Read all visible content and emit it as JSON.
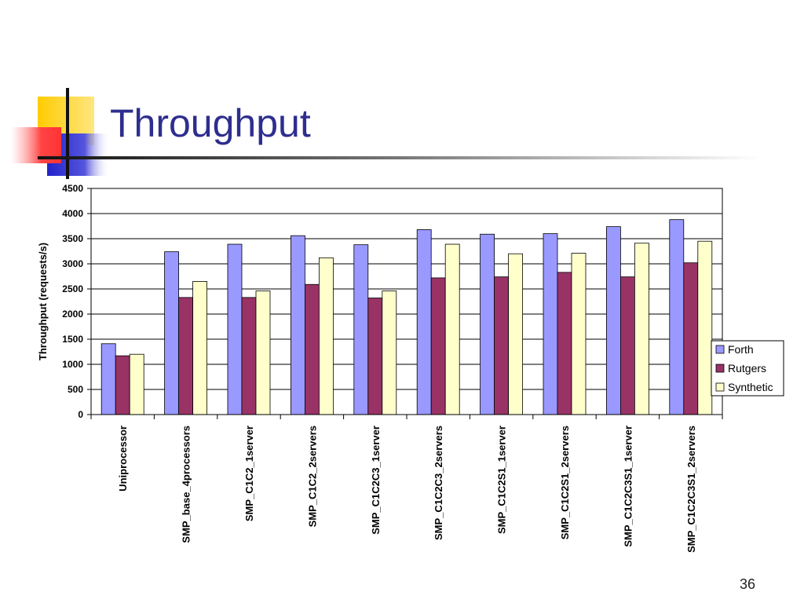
{
  "slide": {
    "title": "Throughput",
    "page_number": "36"
  },
  "colors": {
    "title": "#2e2e8f",
    "forth": "#9999ff",
    "rutgers": "#993366",
    "synthetic": "#ffffcc",
    "deco_yellow": "#ffcc00",
    "deco_red": "#ff3333",
    "deco_blue": "#3333cc"
  },
  "chart_data": {
    "type": "bar",
    "ylabel": "Throughput (requests/s)",
    "xlabel": "",
    "ylim": [
      0,
      4500
    ],
    "yticks": [
      0,
      500,
      1000,
      1500,
      2000,
      2500,
      3000,
      3500,
      4000,
      4500
    ],
    "grid": true,
    "legend_position": "right",
    "categories": [
      "Uniprocessor",
      "SMP_base_4processors",
      "SMP_C1C2_1server",
      "SMP_C1C2_2servers",
      "SMP_C1C2C3_1server",
      "SMP_C1C2C3_2servers",
      "SMP_C1C2S1_1server",
      "SMP_C1C2S1_2servers",
      "SMP_C1C2C3S1_1server",
      "SMP_C1C2C3S1_2servers"
    ],
    "series": [
      {
        "name": "Forth",
        "color": "#9999ff",
        "values": [
          1410,
          3240,
          3390,
          3560,
          3380,
          3680,
          3590,
          3600,
          3740,
          3880
        ]
      },
      {
        "name": "Rutgers",
        "color": "#993366",
        "values": [
          1170,
          2330,
          2330,
          2590,
          2320,
          2720,
          2740,
          2830,
          2740,
          3020
        ]
      },
      {
        "name": "Synthetic",
        "color": "#ffffcc",
        "values": [
          1200,
          2650,
          2460,
          3120,
          2460,
          3390,
          3200,
          3210,
          3410,
          3450
        ]
      }
    ]
  }
}
